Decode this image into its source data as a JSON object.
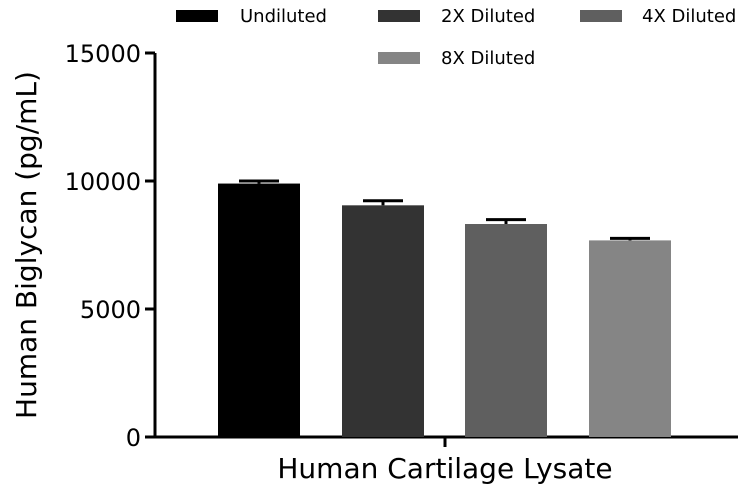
{
  "chart_data": {
    "type": "bar",
    "title": "",
    "xlabel": "Human Cartilage Lysate",
    "ylabel": "Human Biglycan (pg/mL)",
    "ylim": [
      0,
      15000
    ],
    "yticks": [
      "0",
      "5000",
      "10000",
      "15000"
    ],
    "legend_position": "top",
    "series": [
      {
        "name": "Undiluted",
        "value": 9900,
        "error": 100,
        "color": "#000000"
      },
      {
        "name": "2X Diluted",
        "value": 9050,
        "error": 180,
        "color": "#333333"
      },
      {
        "name": "4X Diluted",
        "value": 8320,
        "error": 170,
        "color": "#5f5f5f"
      },
      {
        "name": "8X Diluted",
        "value": 7680,
        "error": 80,
        "color": "#858585"
      }
    ]
  }
}
